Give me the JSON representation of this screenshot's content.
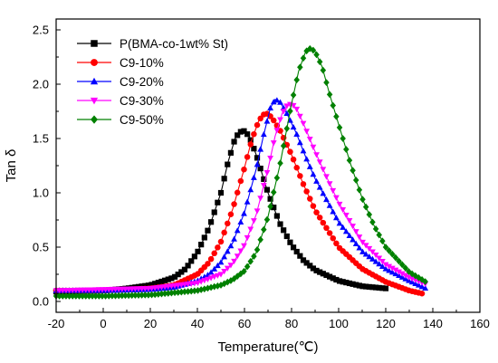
{
  "chart_data": {
    "type": "line",
    "xlabel": "Temperature(℃)",
    "ylabel": "Tan δ",
    "xlim": [
      -20,
      160
    ],
    "ylim": [
      -0.1,
      2.6
    ],
    "xticks": [
      -20,
      0,
      20,
      40,
      60,
      80,
      100,
      120,
      140,
      160
    ],
    "yticks": [
      0.0,
      0.5,
      1.0,
      1.5,
      2.0,
      2.5
    ],
    "ytick_labels": [
      "0.0",
      "0.5",
      "1.0",
      "1.5",
      "2.0",
      "2.5"
    ],
    "grid": false,
    "legend_position": "top-left",
    "series": [
      {
        "name": "P(BMA-co-1wt% St)",
        "color": "#000000",
        "marker": "square",
        "x": [
          -20,
          0,
          10,
          20,
          30,
          35,
          40,
          45,
          50,
          53,
          56,
          58,
          60,
          62,
          65,
          70,
          75,
          80,
          85,
          90,
          100,
          110,
          120
        ],
        "y": [
          0.09,
          0.1,
          0.12,
          0.15,
          0.22,
          0.3,
          0.45,
          0.68,
          1.0,
          1.28,
          1.5,
          1.56,
          1.57,
          1.52,
          1.35,
          1.0,
          0.72,
          0.52,
          0.38,
          0.29,
          0.19,
          0.14,
          0.12
        ]
      },
      {
        "name": "C9-10%",
        "color": "#ff0000",
        "marker": "circle",
        "x": [
          -20,
          0,
          20,
          30,
          40,
          45,
          50,
          55,
          60,
          63,
          66,
          68,
          70,
          72,
          75,
          80,
          85,
          90,
          100,
          110,
          120,
          130,
          136
        ],
        "y": [
          0.1,
          0.1,
          0.12,
          0.15,
          0.25,
          0.36,
          0.55,
          0.85,
          1.23,
          1.48,
          1.66,
          1.72,
          1.73,
          1.68,
          1.58,
          1.35,
          1.08,
          0.84,
          0.5,
          0.3,
          0.18,
          0.1,
          0.07
        ]
      },
      {
        "name": "C9-20%",
        "color": "#0000ff",
        "marker": "triangle-up",
        "x": [
          -20,
          0,
          20,
          30,
          40,
          45,
          50,
          55,
          60,
          65,
          68,
          71,
          73,
          75,
          78,
          82,
          86,
          90,
          100,
          110,
          120,
          130,
          137
        ],
        "y": [
          0.1,
          0.1,
          0.11,
          0.13,
          0.19,
          0.25,
          0.36,
          0.54,
          0.82,
          1.22,
          1.52,
          1.78,
          1.86,
          1.84,
          1.73,
          1.55,
          1.33,
          1.13,
          0.73,
          0.46,
          0.3,
          0.19,
          0.12
        ]
      },
      {
        "name": "C9-30%",
        "color": "#ff00ff",
        "marker": "triangle-down",
        "x": [
          -20,
          0,
          20,
          40,
          50,
          55,
          60,
          65,
          70,
          73,
          76,
          78,
          80,
          82,
          85,
          90,
          95,
          100,
          110,
          120,
          130,
          137
        ],
        "y": [
          0.1,
          0.11,
          0.12,
          0.17,
          0.25,
          0.35,
          0.52,
          0.8,
          1.22,
          1.52,
          1.73,
          1.8,
          1.82,
          1.78,
          1.64,
          1.38,
          1.14,
          0.91,
          0.55,
          0.34,
          0.22,
          0.16
        ]
      },
      {
        "name": "C9-50%",
        "color": "#008000",
        "marker": "diamond",
        "x": [
          -20,
          0,
          20,
          40,
          50,
          55,
          60,
          65,
          70,
          75,
          80,
          83,
          86,
          88,
          90,
          93,
          96,
          100,
          105,
          110,
          115,
          120,
          130,
          137
        ],
        "y": [
          0.05,
          0.05,
          0.06,
          0.1,
          0.15,
          0.2,
          0.28,
          0.45,
          0.78,
          1.25,
          1.82,
          2.12,
          2.3,
          2.33,
          2.3,
          2.16,
          1.92,
          1.63,
          1.27,
          0.95,
          0.7,
          0.5,
          0.27,
          0.18
        ]
      }
    ]
  }
}
